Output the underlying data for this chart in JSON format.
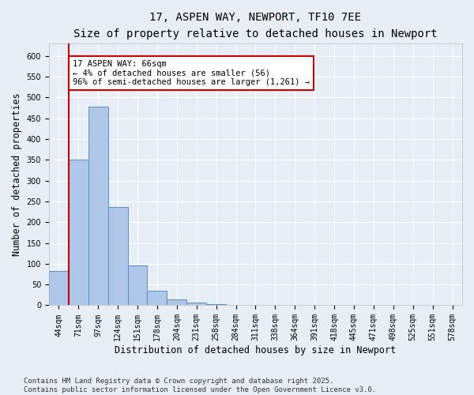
{
  "title_line1": "17, ASPEN WAY, NEWPORT, TF10 7EE",
  "title_line2": "Size of property relative to detached houses in Newport",
  "xlabel": "Distribution of detached houses by size in Newport",
  "ylabel": "Number of detached properties",
  "bar_labels": [
    "44sqm",
    "71sqm",
    "97sqm",
    "124sqm",
    "151sqm",
    "178sqm",
    "204sqm",
    "231sqm",
    "258sqm",
    "284sqm",
    "311sqm",
    "338sqm",
    "364sqm",
    "391sqm",
    "418sqm",
    "445sqm",
    "471sqm",
    "498sqm",
    "525sqm",
    "551sqm",
    "578sqm"
  ],
  "bar_values": [
    83,
    350,
    478,
    236,
    95,
    36,
    15,
    6,
    2,
    1,
    0,
    0,
    0,
    0,
    0,
    0,
    0,
    0,
    0,
    0,
    0
  ],
  "bar_color": "#aec6e8",
  "bar_edge_color": "#5a8fc2",
  "bg_color": "#e8eef5",
  "plot_bg_color": "#e8eef5",
  "grid_color": "#ffffff",
  "vline_x_index": 1,
  "vline_color": "#cc0000",
  "annotation_text_line1": "17 ASPEN WAY: 66sqm",
  "annotation_text_line2": "← 4% of detached houses are smaller (56)",
  "annotation_text_line3": "96% of semi-detached houses are larger (1,261) →",
  "annotation_box_color": "#ffffff",
  "annotation_box_edge": "#cc0000",
  "ylim": [
    0,
    630
  ],
  "yticks": [
    0,
    50,
    100,
    150,
    200,
    250,
    300,
    350,
    400,
    450,
    500,
    550,
    600
  ],
  "footer_line1": "Contains HM Land Registry data © Crown copyright and database right 2025.",
  "footer_line2": "Contains public sector information licensed under the Open Government Licence v3.0.",
  "title_fontsize": 10,
  "subtitle_fontsize": 9,
  "axis_label_fontsize": 8.5,
  "tick_fontsize": 7,
  "annotation_fontsize": 7.5,
  "footer_fontsize": 6.5
}
